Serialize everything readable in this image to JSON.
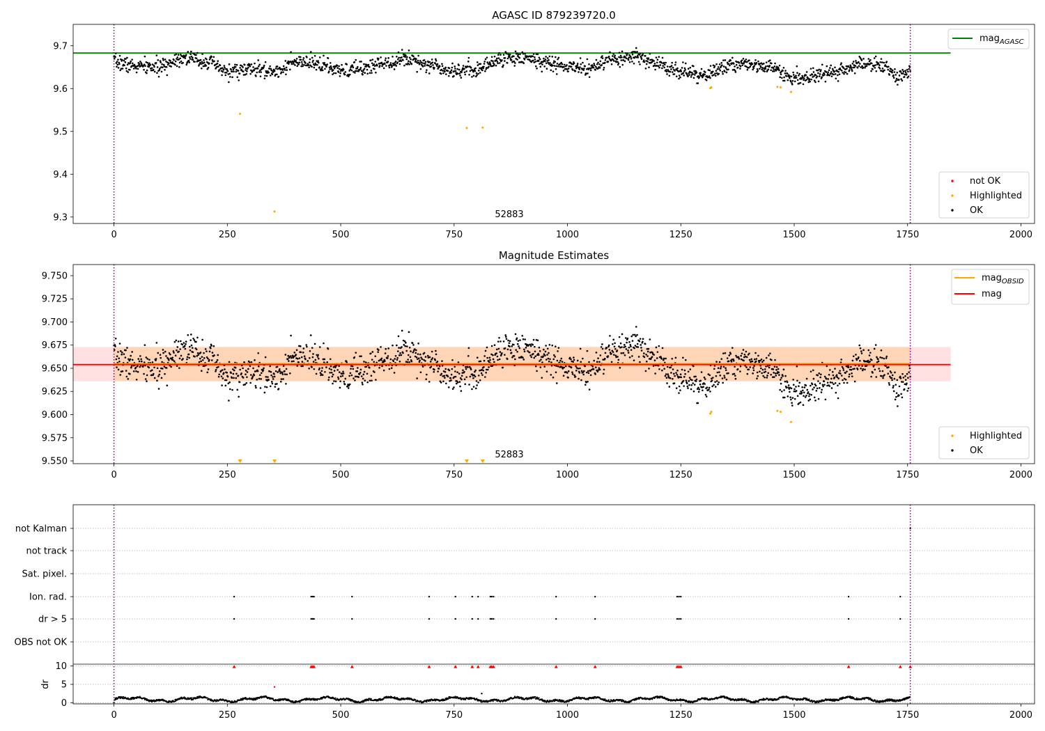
{
  "colors": {
    "ok": "#000000",
    "highlighted": "#ffa500",
    "not_ok": "#ff0000",
    "agasc_line": "#008000",
    "obsid_line": "#ffa500",
    "mag_line": "#ff0000",
    "band_fill": "#ffb3b3",
    "band_fill_obsid": "#ffd0a8",
    "vline": "#800080",
    "grid": "#b0b0b0"
  },
  "chart_data": [
    {
      "type": "scatter",
      "title": "AGASC ID 879239720.0",
      "annotation": "52883",
      "xlim": [
        -90,
        2030
      ],
      "ylim": [
        9.285,
        9.75
      ],
      "xticks": [
        0,
        250,
        500,
        750,
        1000,
        1250,
        1500,
        1750,
        2000
      ],
      "xtick_labels": [
        "0",
        "250",
        "500",
        "750",
        "1000",
        "1250",
        "1500",
        "1750",
        "2000"
      ],
      "yticks": [
        9.3,
        9.4,
        9.5,
        9.6,
        9.7
      ],
      "ytick_labels": [
        "9.3",
        "9.4",
        "9.5",
        "9.6",
        "9.7"
      ],
      "vlines": [
        0,
        1756
      ],
      "hline": {
        "y": 9.683,
        "x_range": [
          -90,
          1845
        ]
      },
      "legend_lines": [
        {
          "name": "mag",
          "sub": "AGASC",
          "color": "#008000"
        }
      ],
      "legend_points": [
        {
          "name": "not OK",
          "color": "#ff0000"
        },
        {
          "name": "Highlighted",
          "color": "#ffa500"
        },
        {
          "name": "OK",
          "color": "#000000"
        }
      ],
      "ok_series": {
        "count": 1756,
        "x_range": [
          0,
          1756
        ],
        "baseline": 9.652,
        "noise": 0.011,
        "offset": 0.0
      },
      "highlighted": [
        {
          "x": 278,
          "y": 9.541
        },
        {
          "x": 354,
          "y": 9.313
        },
        {
          "x": 778,
          "y": 9.508
        },
        {
          "x": 813,
          "y": 9.509
        },
        {
          "x": 1315,
          "y": 9.601
        },
        {
          "x": 1317,
          "y": 9.603
        },
        {
          "x": 1463,
          "y": 9.604
        },
        {
          "x": 1470,
          "y": 9.603
        },
        {
          "x": 1493,
          "y": 9.592
        }
      ]
    },
    {
      "type": "scatter",
      "title": "Magnitude Estimates",
      "annotation": "52883",
      "xlim": [
        -90,
        2030
      ],
      "ylim": [
        9.547,
        9.762
      ],
      "xticks": [
        0,
        250,
        500,
        750,
        1000,
        1250,
        1500,
        1750,
        2000
      ],
      "xtick_labels": [
        "0",
        "250",
        "500",
        "750",
        "1000",
        "1250",
        "1500",
        "1750",
        "2000"
      ],
      "yticks": [
        9.55,
        9.575,
        9.6,
        9.625,
        9.65,
        9.675,
        9.7,
        9.725,
        9.75
      ],
      "ytick_labels": [
        "9.550",
        "9.575",
        "9.600",
        "9.625",
        "9.650",
        "9.675",
        "9.700",
        "9.725",
        "9.750"
      ],
      "vlines": [
        0,
        1756
      ],
      "mag": {
        "y": 9.654,
        "band": [
          9.636,
          9.673
        ],
        "x_range": [
          -90,
          1845
        ]
      },
      "mag_obsid": {
        "y": 9.655,
        "band": [
          9.636,
          9.673
        ],
        "x_range": [
          0,
          1756
        ]
      },
      "legend_lines": [
        {
          "name": "mag",
          "sub": "OBSID",
          "color": "#ffa500"
        },
        {
          "name": "mag",
          "sub": "",
          "color": "#ff0000"
        }
      ],
      "legend_points": [
        {
          "name": "Highlighted",
          "color": "#ffa500"
        },
        {
          "name": "OK",
          "color": "#000000"
        }
      ],
      "ok_series": {
        "count": 1756,
        "x_range": [
          0,
          1756
        ],
        "baseline": 9.652,
        "noise": 0.011,
        "offset": 0.0
      },
      "highlighted": [
        {
          "x": 1315,
          "y": 9.601
        },
        {
          "x": 1317,
          "y": 9.603
        },
        {
          "x": 1463,
          "y": 9.604
        },
        {
          "x": 1470,
          "y": 9.603
        },
        {
          "x": 1493,
          "y": 9.592
        }
      ],
      "clipped_markers": [
        278,
        354,
        778,
        813
      ]
    },
    {
      "type": "scatter",
      "title": "",
      "xlim": [
        -90,
        2030
      ],
      "xticks": [
        0,
        250,
        500,
        750,
        1000,
        1250,
        1500,
        1750,
        2000
      ],
      "xtick_labels": [
        "0",
        "250",
        "500",
        "750",
        "1000",
        "1250",
        "1500",
        "1750",
        "2000"
      ],
      "vlines": [
        0,
        1756
      ],
      "flag_rows": [
        "not Kalman",
        "not track",
        "Sat. pixel.",
        "Ion. rad.",
        "dr > 5",
        "OBS not OK"
      ],
      "flag_points": {
        "Ion. rad.": [
          265,
          435,
          438,
          441,
          525,
          695,
          753,
          790,
          803,
          830,
          833,
          837,
          975,
          1061,
          1242,
          1246,
          1250,
          1620,
          1734
        ],
        "dr > 5": [
          265,
          435,
          438,
          441,
          525,
          695,
          753,
          790,
          803,
          830,
          833,
          837,
          975,
          1061,
          1242,
          1246,
          1250,
          1620,
          1734
        ],
        "not Kalman": [
          1756
        ]
      },
      "dr": {
        "ylabel": "dr",
        "ylim": [
          -0.3,
          10.5
        ],
        "yticks": [
          0,
          5,
          10
        ],
        "ytick_labels": [
          "0",
          "5",
          "10"
        ],
        "count": 1756,
        "baseline": 0.9,
        "clipped_x": [
          265,
          435,
          438,
          441,
          525,
          695,
          753,
          790,
          803,
          830,
          833,
          837,
          975,
          1061,
          1242,
          1246,
          1250,
          1620,
          1734,
          1756
        ],
        "outliers": [
          {
            "x": 354,
            "y": 4.3
          },
          {
            "x": 811,
            "y": 2.5
          }
        ]
      }
    }
  ]
}
